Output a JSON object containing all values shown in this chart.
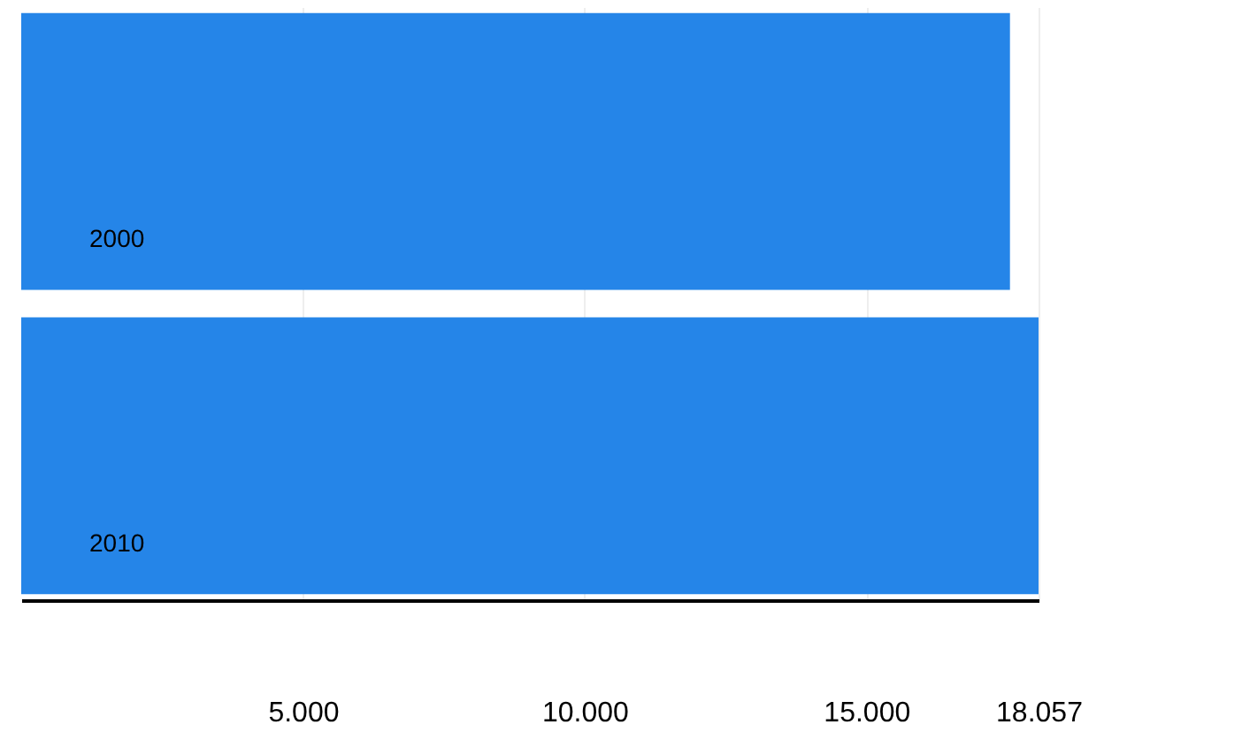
{
  "chart_data": {
    "type": "bar",
    "orientation": "horizontal",
    "categories": [
      "2000",
      "2010"
    ],
    "values": [
      17550,
      18057
    ],
    "color": "#2585e8",
    "xlim": [
      0,
      18057
    ],
    "xticks": [
      {
        "value": 5000,
        "label": "5.000"
      },
      {
        "value": 10000,
        "label": "10.000"
      },
      {
        "value": 15000,
        "label": "15.000"
      },
      {
        "value": 18057,
        "label": "18.057"
      }
    ],
    "grid": "x"
  }
}
